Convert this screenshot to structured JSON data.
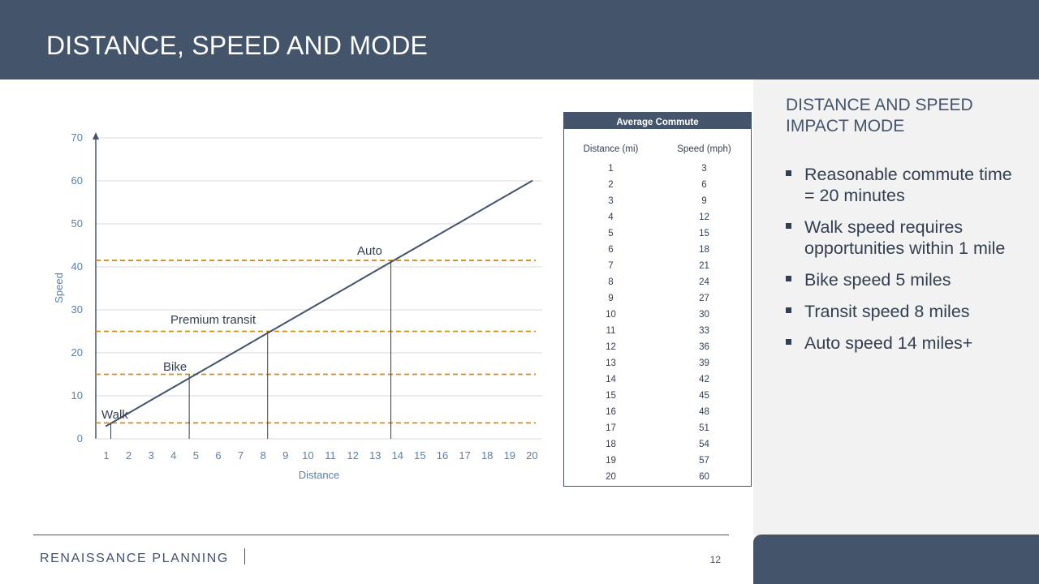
{
  "slide": {
    "title": "DISTANCE, SPEED AND MODE",
    "page_number": "12",
    "logo_text": "RENAISSANCE PLANNING"
  },
  "panel": {
    "heading": "DISTANCE AND SPEED IMPACT MODE",
    "bullets": [
      "Reasonable commute time = 20 minutes",
      "Walk speed requires opportunities within 1 mile",
      "Bike speed 5 miles",
      "Transit speed 8 miles",
      "Auto speed 14 miles+"
    ]
  },
  "table": {
    "title": "Average Commute",
    "columns": [
      "Distance (mi)",
      "Speed (mph)"
    ],
    "rows": [
      [
        "1",
        "3"
      ],
      [
        "2",
        "6"
      ],
      [
        "3",
        "9"
      ],
      [
        "4",
        "12"
      ],
      [
        "5",
        "15"
      ],
      [
        "6",
        "18"
      ],
      [
        "7",
        "21"
      ],
      [
        "8",
        "24"
      ],
      [
        "9",
        "27"
      ],
      [
        "10",
        "30"
      ],
      [
        "11",
        "33"
      ],
      [
        "12",
        "36"
      ],
      [
        "13",
        "39"
      ],
      [
        "14",
        "42"
      ],
      [
        "15",
        "45"
      ],
      [
        "16",
        "48"
      ],
      [
        "17",
        "51"
      ],
      [
        "18",
        "54"
      ],
      [
        "19",
        "57"
      ],
      [
        "20",
        "60"
      ]
    ]
  },
  "colors": {
    "header": "#44546a",
    "line": "#44546a",
    "threshold": "#d38f13",
    "axis_text": "#5a7fa8"
  },
  "chart_data": {
    "type": "line",
    "title": "",
    "xlabel": "Distance",
    "ylabel": "Speed",
    "categories": [
      "1",
      "2",
      "3",
      "4",
      "5",
      "6",
      "7",
      "8",
      "9",
      "10",
      "11",
      "12",
      "13",
      "14",
      "15",
      "16",
      "17",
      "18",
      "19",
      "20"
    ],
    "values": [
      3,
      6,
      9,
      12,
      15,
      18,
      21,
      24,
      27,
      30,
      33,
      36,
      39,
      42,
      45,
      48,
      51,
      54,
      57,
      60
    ],
    "ylim": [
      0,
      70
    ],
    "yticks": [
      "0",
      "10",
      "20",
      "30",
      "40",
      "50",
      "60",
      "70"
    ],
    "grid": true,
    "thresholds": [
      {
        "label": "Walk",
        "speed": 3.7,
        "distance": 1.2
      },
      {
        "label": "Bike",
        "speed": 15,
        "distance": 4.7
      },
      {
        "label": "Premium transit",
        "speed": 25,
        "distance": 8.2
      },
      {
        "label": "Auto",
        "speed": 41.5,
        "distance": 13.7
      }
    ]
  }
}
